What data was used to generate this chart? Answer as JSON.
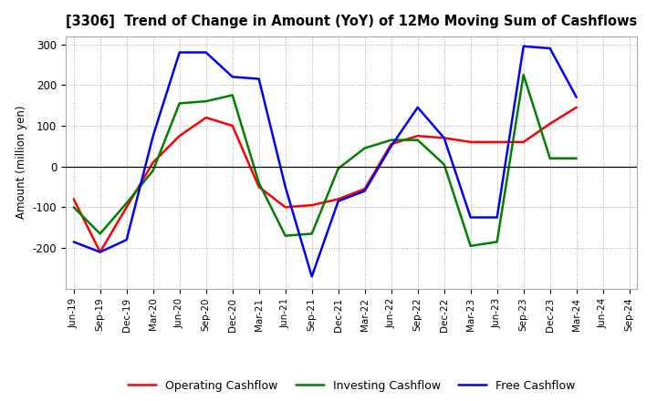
{
  "title": "[3306]  Trend of Change in Amount (YoY) of 12Mo Moving Sum of Cashflows",
  "ylabel": "Amount (million yen)",
  "x_labels": [
    "Jun-19",
    "Sep-19",
    "Dec-19",
    "Mar-20",
    "Jun-20",
    "Sep-20",
    "Dec-20",
    "Mar-21",
    "Jun-21",
    "Sep-21",
    "Dec-21",
    "Mar-22",
    "Jun-22",
    "Sep-22",
    "Dec-22",
    "Mar-23",
    "Jun-23",
    "Sep-23",
    "Dec-23",
    "Mar-24",
    "Jun-24",
    "Sep-24"
  ],
  "operating": [
    -80,
    -210,
    -100,
    10,
    75,
    120,
    100,
    -50,
    -100,
    -95,
    -80,
    -55,
    55,
    75,
    70,
    60,
    60,
    60,
    105,
    145,
    null,
    null
  ],
  "investing": [
    -100,
    -165,
    -90,
    -10,
    155,
    160,
    175,
    -40,
    -170,
    -165,
    -5,
    45,
    65,
    65,
    5,
    -195,
    -185,
    225,
    20,
    20,
    null,
    null
  ],
  "free": [
    -185,
    -210,
    -180,
    75,
    280,
    280,
    220,
    215,
    -50,
    -270,
    -85,
    -60,
    50,
    145,
    70,
    -125,
    -125,
    295,
    290,
    170,
    null,
    null
  ],
  "ylim": [
    -300,
    320
  ],
  "yticks": [
    -200,
    -100,
    0,
    100,
    200,
    300
  ],
  "operating_color": "#ff0000",
  "investing_color": "#008000",
  "free_color": "#0000ff",
  "bg_color": "#ffffff",
  "grid_color": "#aaaaaa",
  "linewidth": 1.8
}
